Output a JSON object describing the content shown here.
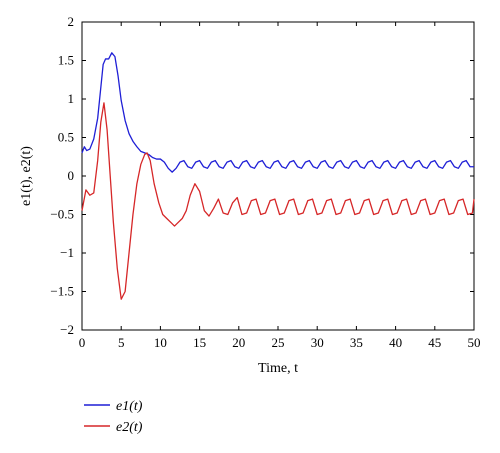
{
  "chart_data": {
    "type": "line",
    "title": "",
    "xlabel": "Time, t",
    "ylabel": "e1(t), e2(t)",
    "xlim": [
      0,
      50
    ],
    "ylim": [
      -2,
      2
    ],
    "xticks": [
      0,
      5,
      10,
      15,
      20,
      25,
      30,
      35,
      40,
      45,
      50
    ],
    "yticks": [
      -2,
      -1.5,
      -1,
      -0.5,
      0,
      0.5,
      1,
      1.5,
      2
    ],
    "xtick_labels": [
      "0",
      "5",
      "10",
      "15",
      "20",
      "25",
      "30",
      "35",
      "40",
      "45",
      "50"
    ],
    "ytick_labels": [
      "−2",
      "−1.5",
      "−1",
      "−0.5",
      "0",
      "0.5",
      "1",
      "1.5",
      "2"
    ],
    "grid": false,
    "legend_position": "bottom-left-outside",
    "series": [
      {
        "name": "e1(t)",
        "color": "#1f1fd6",
        "x": [
          0,
          0.3,
          0.6,
          1.0,
          1.5,
          2.0,
          2.3,
          2.7,
          3.0,
          3.4,
          3.8,
          4.2,
          4.6,
          5.0,
          5.5,
          6.0,
          6.5,
          7.0,
          7.5,
          8.0,
          8.5,
          9.0,
          9.5,
          10.0,
          10.5,
          11.0,
          11.5,
          12.0,
          12.5,
          13.0,
          13.5,
          14.0,
          14.5,
          15.0,
          15.5,
          16.0,
          16.5,
          17.0,
          17.5,
          18.0,
          18.5,
          19.0,
          19.5,
          20.0,
          20.5,
          21.0,
          21.5,
          22.0,
          22.5,
          23.0,
          23.5,
          24.0,
          24.5,
          25.0,
          25.5,
          26.0,
          26.5,
          27.0,
          27.5,
          28.0,
          28.5,
          29.0,
          29.5,
          30.0,
          30.5,
          31.0,
          31.5,
          32.0,
          32.5,
          33.0,
          33.5,
          34.0,
          34.5,
          35.0,
          35.5,
          36.0,
          36.5,
          37.0,
          37.5,
          38.0,
          38.5,
          39.0,
          39.5,
          40.0,
          40.5,
          41.0,
          41.5,
          42.0,
          42.5,
          43.0,
          43.5,
          44.0,
          44.5,
          45.0,
          45.5,
          46.0,
          46.5,
          47.0,
          47.5,
          48.0,
          48.5,
          49.0,
          49.5,
          50.0
        ],
        "y": [
          0.3,
          0.38,
          0.33,
          0.35,
          0.48,
          0.75,
          1.05,
          1.45,
          1.52,
          1.52,
          1.6,
          1.55,
          1.3,
          0.98,
          0.72,
          0.55,
          0.45,
          0.38,
          0.32,
          0.3,
          0.28,
          0.24,
          0.22,
          0.22,
          0.18,
          0.1,
          0.05,
          0.1,
          0.18,
          0.2,
          0.12,
          0.1,
          0.18,
          0.2,
          0.12,
          0.1,
          0.18,
          0.2,
          0.12,
          0.1,
          0.18,
          0.2,
          0.12,
          0.1,
          0.18,
          0.2,
          0.12,
          0.1,
          0.18,
          0.2,
          0.12,
          0.1,
          0.18,
          0.2,
          0.12,
          0.1,
          0.18,
          0.2,
          0.12,
          0.1,
          0.18,
          0.2,
          0.12,
          0.1,
          0.18,
          0.2,
          0.12,
          0.1,
          0.18,
          0.2,
          0.12,
          0.1,
          0.18,
          0.2,
          0.12,
          0.1,
          0.18,
          0.2,
          0.12,
          0.1,
          0.18,
          0.2,
          0.12,
          0.1,
          0.18,
          0.2,
          0.12,
          0.1,
          0.18,
          0.2,
          0.12,
          0.1,
          0.18,
          0.2,
          0.12,
          0.1,
          0.18,
          0.2,
          0.12,
          0.1,
          0.18,
          0.2,
          0.12,
          0.12
        ]
      },
      {
        "name": "e2(t)",
        "color": "#d62728",
        "x": [
          0,
          0.5,
          1.0,
          1.5,
          2.0,
          2.4,
          2.8,
          3.2,
          3.6,
          4.0,
          4.5,
          5.0,
          5.5,
          6.0,
          6.5,
          7.0,
          7.5,
          8.0,
          8.3,
          8.7,
          9.2,
          9.8,
          10.3,
          10.8,
          11.3,
          11.8,
          12.3,
          12.8,
          13.3,
          13.8,
          14.4,
          15.0,
          15.6,
          16.2,
          16.8,
          17.4,
          18.0,
          18.6,
          19.2,
          19.8,
          20.4,
          21.0,
          21.6,
          22.2,
          22.8,
          23.4,
          24.0,
          24.6,
          25.2,
          25.8,
          26.4,
          27.0,
          27.6,
          28.2,
          28.8,
          29.4,
          30.0,
          30.6,
          31.2,
          31.8,
          32.4,
          33.0,
          33.6,
          34.2,
          34.8,
          35.4,
          36.0,
          36.6,
          37.2,
          37.8,
          38.4,
          39.0,
          39.6,
          40.2,
          40.8,
          41.4,
          42.0,
          42.6,
          43.2,
          43.8,
          44.4,
          45.0,
          45.6,
          46.2,
          46.8,
          47.4,
          48.0,
          48.6,
          49.2,
          49.8,
          50.0
        ],
        "y": [
          -0.45,
          -0.18,
          -0.25,
          -0.22,
          0.2,
          0.7,
          0.95,
          0.6,
          0.0,
          -0.6,
          -1.2,
          -1.6,
          -1.5,
          -1.0,
          -0.5,
          -0.1,
          0.15,
          0.28,
          0.3,
          0.2,
          -0.1,
          -0.35,
          -0.5,
          -0.55,
          -0.6,
          -0.65,
          -0.6,
          -0.55,
          -0.45,
          -0.25,
          -0.1,
          -0.2,
          -0.45,
          -0.52,
          -0.42,
          -0.3,
          -0.48,
          -0.5,
          -0.35,
          -0.28,
          -0.5,
          -0.48,
          -0.32,
          -0.3,
          -0.5,
          -0.48,
          -0.32,
          -0.3,
          -0.5,
          -0.48,
          -0.32,
          -0.3,
          -0.5,
          -0.48,
          -0.32,
          -0.3,
          -0.5,
          -0.48,
          -0.32,
          -0.3,
          -0.5,
          -0.48,
          -0.32,
          -0.3,
          -0.5,
          -0.48,
          -0.32,
          -0.3,
          -0.5,
          -0.48,
          -0.32,
          -0.3,
          -0.5,
          -0.48,
          -0.32,
          -0.3,
          -0.5,
          -0.48,
          -0.32,
          -0.3,
          -0.5,
          -0.48,
          -0.32,
          -0.3,
          -0.5,
          -0.48,
          -0.32,
          -0.3,
          -0.5,
          -0.48,
          -0.3
        ]
      }
    ]
  }
}
